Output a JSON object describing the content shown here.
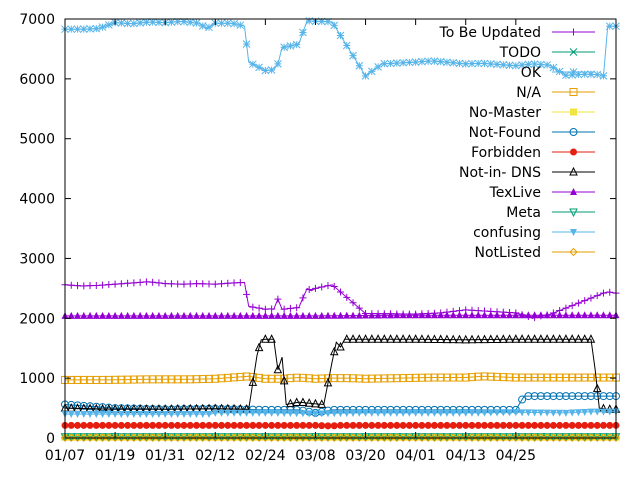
{
  "chart_data": {
    "type": "line",
    "title": "",
    "xlabel": "",
    "ylabel": "",
    "x_tick_labels": [
      "01/07",
      "01/19",
      "01/31",
      "02/12",
      "02/24",
      "03/08",
      "03/20",
      "04/01",
      "04/13",
      "04/25"
    ],
    "y_tick_labels": [
      "0",
      "1000",
      "2000",
      "3000",
      "4000",
      "5000",
      "6000",
      "7000"
    ],
    "x_range_days": [
      0,
      132
    ],
    "x_tick_days": [
      0,
      12,
      24,
      36,
      48,
      60,
      72,
      84,
      96,
      108
    ],
    "ylim": [
      0,
      7000
    ],
    "legend_position": "top-right",
    "grid": false,
    "series": [
      {
        "name": "To Be Updated",
        "color": "#9400d3",
        "marker": "plus",
        "x": [
          0,
          4,
          8,
          12,
          16,
          20,
          24,
          28,
          32,
          36,
          40,
          43,
          44,
          48,
          49,
          50,
          51,
          52,
          56,
          58,
          59,
          60,
          64,
          72,
          84,
          90,
          96,
          108,
          111,
          112,
          114,
          116,
          129,
          130,
          132
        ],
        "y": [
          2560,
          2540,
          2550,
          2570,
          2590,
          2610,
          2580,
          2570,
          2580,
          2570,
          2590,
          2600,
          2200,
          2150,
          2160,
          2150,
          2320,
          2150,
          2180,
          2500,
          2460,
          2500,
          2560,
          2080,
          2070,
          2090,
          2140,
          2090,
          2030,
          2000,
          2040,
          2060,
          2420,
          2440,
          2420
        ]
      },
      {
        "name": "TODO",
        "color": "#009e73",
        "marker": "cross",
        "x": [
          0,
          132
        ],
        "y": [
          20,
          20
        ]
      },
      {
        "name": "OK",
        "color": "#56b4e9",
        "marker": "star",
        "x": [
          0,
          4,
          8,
          12,
          16,
          20,
          24,
          28,
          32,
          34,
          36,
          40,
          43,
          44,
          48,
          50,
          51,
          52,
          56,
          58,
          60,
          62,
          64,
          68,
          72,
          76,
          84,
          88,
          96,
          100,
          104,
          108,
          112,
          116,
          120,
          125,
          128,
          129,
          130,
          132
        ],
        "y": [
          6830,
          6830,
          6840,
          6940,
          6920,
          6950,
          6940,
          6960,
          6930,
          6840,
          6930,
          6930,
          6880,
          6280,
          6140,
          6150,
          6250,
          6520,
          6580,
          6970,
          6960,
          6960,
          6950,
          6500,
          6050,
          6250,
          6280,
          6300,
          6250,
          6260,
          6240,
          6220,
          6250,
          6230,
          6060,
          6080,
          6070,
          6050,
          6880,
          6880
        ]
      },
      {
        "name": "N/A",
        "color": "#e69f00",
        "marker": "square",
        "x": [
          0,
          10,
          20,
          30,
          36,
          40,
          44,
          48,
          52,
          56,
          60,
          64,
          68,
          72,
          80,
          88,
          96,
          100,
          108,
          116,
          124,
          130,
          132
        ],
        "y": [
          970,
          970,
          980,
          980,
          990,
          1010,
          1030,
          990,
          990,
          1010,
          990,
          1000,
          1000,
          990,
          1000,
          1010,
          1010,
          1030,
          1010,
          1010,
          1010,
          1010,
          1010
        ]
      },
      {
        "name": "No-Master",
        "color": "#f0e442",
        "marker": "filled-square",
        "x": [
          0,
          132
        ],
        "y": [
          15,
          15
        ]
      },
      {
        "name": "Not-Found",
        "color": "#0072b2",
        "marker": "circle",
        "x": [
          0,
          12,
          24,
          36,
          48,
          56,
          60,
          64,
          72,
          84,
          96,
          108,
          110,
          111,
          120,
          132
        ],
        "y": [
          560,
          500,
          480,
          490,
          470,
          470,
          420,
          470,
          470,
          470,
          470,
          470,
          700,
          700,
          700,
          700
        ]
      },
      {
        "name": "Forbidden",
        "color": "#e51e10",
        "marker": "filled-circle",
        "x": [
          0,
          12,
          24,
          36,
          48,
          60,
          64,
          65,
          72,
          84,
          96,
          108,
          120,
          132
        ],
        "y": [
          210,
          210,
          210,
          210,
          210,
          210,
          200,
          210,
          210,
          210,
          210,
          210,
          210,
          210
        ]
      },
      {
        "name": "Not-in- DNS",
        "color": "#000000",
        "marker": "triangle",
        "x": [
          0,
          12,
          24,
          36,
          44,
          46,
          47,
          48,
          50,
          51,
          52,
          53,
          56,
          60,
          62,
          64,
          65,
          66,
          67,
          68,
          72,
          84,
          96,
          108,
          117,
          120,
          126,
          127,
          128,
          130,
          132
        ],
        "y": [
          500,
          480,
          480,
          490,
          480,
          1380,
          1640,
          1650,
          1650,
          1140,
          1350,
          560,
          600,
          570,
          560,
          1280,
          1600,
          1520,
          1650,
          1650,
          1650,
          1650,
          1640,
          1650,
          1650,
          1650,
          1650,
          1150,
          500,
          480,
          480
        ]
      },
      {
        "name": "TexLive",
        "color": "#9400d3",
        "marker": "filled-triangle",
        "x": [
          0,
          20,
          40,
          60,
          80,
          100,
          120,
          132
        ],
        "y": [
          2040,
          2040,
          2040,
          2040,
          2050,
          2050,
          2050,
          2050
        ]
      },
      {
        "name": "Meta",
        "color": "#009e73",
        "marker": "inverted-triangle",
        "x": [
          0,
          132
        ],
        "y": [
          20,
          20
        ]
      },
      {
        "name": "confusing",
        "color": "#56b4e9",
        "marker": "filled-inverted-triangle",
        "x": [
          0,
          12,
          24,
          35,
          36,
          48,
          60,
          72,
          84,
          96,
          108,
          120,
          126,
          132
        ],
        "y": [
          400,
          400,
          400,
          400,
          420,
          420,
          410,
          420,
          420,
          420,
          430,
          420,
          440,
          440
        ]
      },
      {
        "name": "NotListed",
        "color": "#e69f00",
        "marker": "diamond",
        "x": [
          0,
          132
        ],
        "y": [
          5,
          5
        ]
      }
    ]
  }
}
